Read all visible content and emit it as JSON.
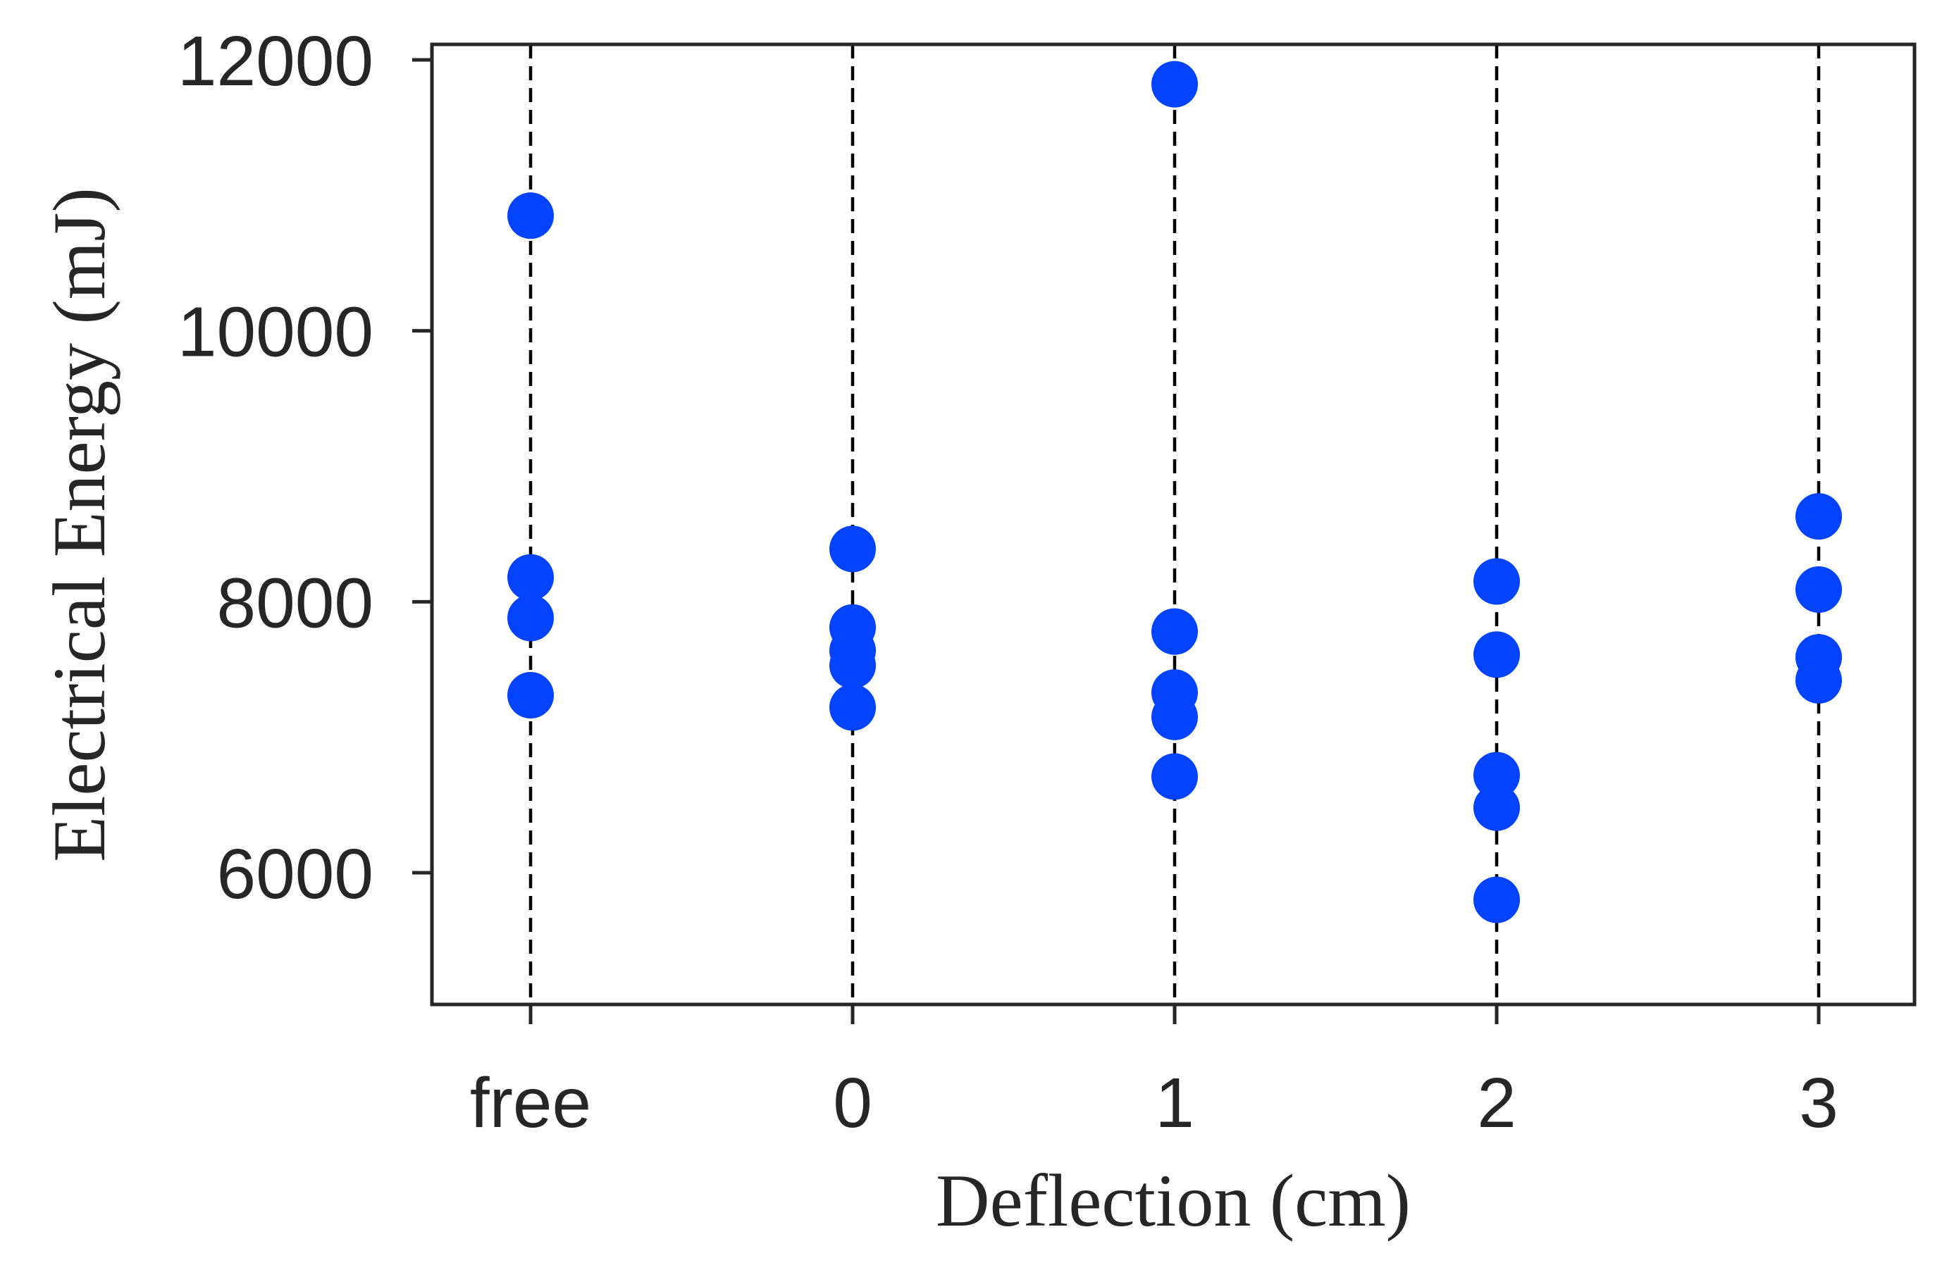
{
  "chart_data": {
    "type": "scatter",
    "title": "",
    "xlabel": "Deflection (cm)",
    "ylabel": "Electrical Energy (mJ)",
    "categories": [
      "free",
      "0",
      "1",
      "2",
      "3"
    ],
    "yticks": [
      6000,
      8000,
      10000,
      12000
    ],
    "ylim": [
      5000,
      12100
    ],
    "grid": false,
    "vertical_dashed_guides": true,
    "marker_color": "#0343fd",
    "series": [
      {
        "points": [
          {
            "x": "free",
            "y": 10850
          },
          {
            "x": "free",
            "y": 8180
          },
          {
            "x": "free",
            "y": 7880
          },
          {
            "x": "free",
            "y": 7310
          },
          {
            "x": "0",
            "y": 8390
          },
          {
            "x": "0",
            "y": 7810
          },
          {
            "x": "0",
            "y": 7640
          },
          {
            "x": "0",
            "y": 7530
          },
          {
            "x": "0",
            "y": 7220
          },
          {
            "x": "1",
            "y": 11820
          },
          {
            "x": "1",
            "y": 7780
          },
          {
            "x": "1",
            "y": 7330
          },
          {
            "x": "1",
            "y": 7150
          },
          {
            "x": "1",
            "y": 6710
          },
          {
            "x": "2",
            "y": 8150
          },
          {
            "x": "2",
            "y": 7610
          },
          {
            "x": "2",
            "y": 6720
          },
          {
            "x": "2",
            "y": 6480
          },
          {
            "x": "2",
            "y": 5800
          },
          {
            "x": "3",
            "y": 8630
          },
          {
            "x": "3",
            "y": 8090
          },
          {
            "x": "3",
            "y": 7590
          },
          {
            "x": "3",
            "y": 7420
          }
        ]
      }
    ]
  }
}
